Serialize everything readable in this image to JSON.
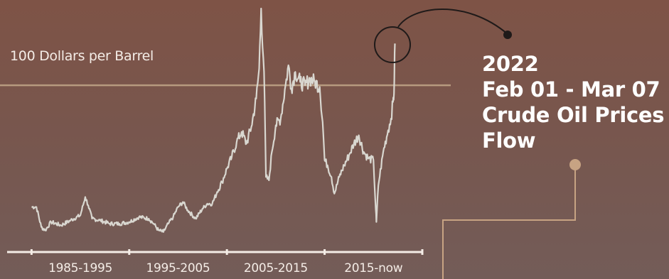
{
  "chart_data": {
    "type": "line",
    "title_lines": [
      "2022",
      "Feb 01 - Mar 07",
      "Crude Oil Prices",
      "Flow"
    ],
    "reference_line": {
      "label": "100 Dollars per Barrel",
      "value": 100
    },
    "x_tick_labels": [
      "1985-1995",
      "1995-2005",
      "2005-2015",
      "2015-now"
    ],
    "x_ticks": [
      1985,
      1995,
      2005,
      2015,
      2025
    ],
    "xlim": [
      1982.5,
      2025
    ],
    "ylim": [
      0,
      146
    ],
    "grid": false,
    "series": [
      {
        "color": "#d9d7d0",
        "x": [
          1985,
          1985.5,
          1986,
          1986.4,
          1987,
          1988,
          1989,
          1990,
          1990.5,
          1990.8,
          1991.2,
          1992,
          1993,
          1994,
          1995,
          1996,
          1997,
          1997.5,
          1998,
          1998.5,
          1999,
          1999.5,
          2000,
          2000.5,
          2001,
          2001.8,
          2002.5,
          2003,
          2003.5,
          2004,
          2004.5,
          2005,
          2005.5,
          2006,
          2006.5,
          2007,
          2007.5,
          2008,
          2008.3,
          2008.5,
          2008.8,
          2009,
          2009.3,
          2009.6,
          2010,
          2010.5,
          2011,
          2011.3,
          2011.6,
          2012,
          2012.5,
          2013,
          2013.5,
          2014,
          2014.5,
          2014.8,
          2015,
          2015.3,
          2015.7,
          2016,
          2016.5,
          2017,
          2017.5,
          2018,
          2018.5,
          2019,
          2019.5,
          2020,
          2020.2,
          2020.3,
          2020.5,
          2021,
          2021.5,
          2021.8,
          2022,
          2022.1,
          2022.2
        ],
        "values": [
          27,
          27,
          15,
          13,
          18,
          16,
          19,
          22,
          33,
          28,
          20,
          19,
          17,
          17,
          18,
          21,
          20,
          17,
          13,
          12,
          17,
          21,
          27,
          30,
          25,
          20,
          26,
          29,
          29,
          36,
          42,
          50,
          57,
          66,
          72,
          65,
          75,
          92,
          110,
          146,
          108,
          45,
          43,
          60,
          76,
          80,
          100,
          112,
          98,
          108,
          102,
          100,
          104,
          102,
          99,
          78,
          55,
          52,
          45,
          35,
          45,
          52,
          58,
          65,
          70,
          60,
          56,
          55,
          30,
          18,
          40,
          60,
          73,
          80,
          90,
          95,
          125
        ]
      }
    ]
  }
}
